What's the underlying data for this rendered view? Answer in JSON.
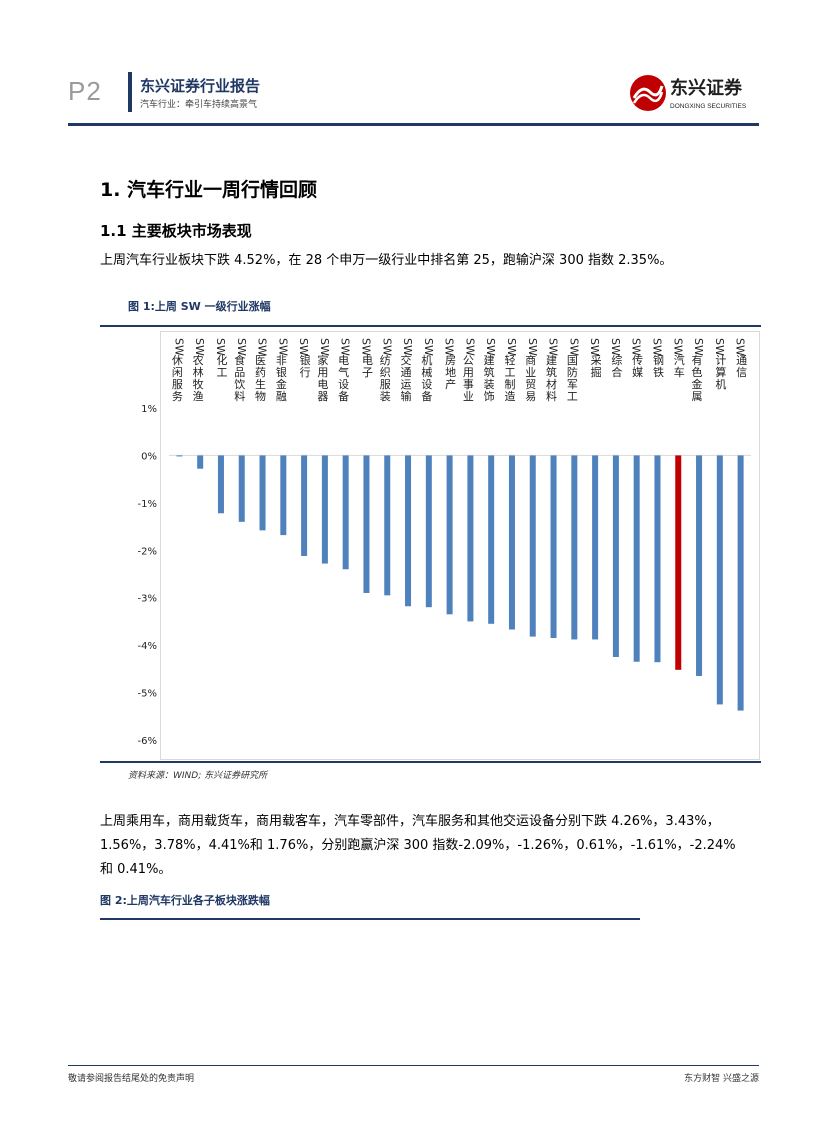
{
  "header": {
    "page_no": "P2",
    "report_title": "东兴证券行业报告",
    "report_subtitle": "汽车行业：牵引车持续高景气",
    "logo_text": "东兴证券",
    "logo_sub": "DONGXING SECURITIES",
    "colors": {
      "brand_blue": "#1f3864",
      "logo_red": "#c00000"
    }
  },
  "section": {
    "h1": "1. 汽车行业一周行情回顾",
    "h2": "1.1 主要板块市场表现",
    "para1": "上周汽车行业板块下跌 4.52%，在 28 个申万一级行业中排名第 25，跑输沪深 300 指数 2.35%。",
    "para2_line1": "上周乘用车，商用载货车，商用载客车，汽车零部件，汽车服务和其他交运设备分别下跌 4.26%，3.43%，",
    "para2_line2": "1.56%，3.78%，4.41%和 1.76%，分别跑赢沪深 300 指数-2.09%，-1.26%，0.61%，-1.61%，-2.24%",
    "para2_line3": "和 0.41%。"
  },
  "figure1": {
    "title": "图 1:上周 SW 一级行业涨幅",
    "source": "资料来源：WIND; 东兴证券研究所"
  },
  "figure2": {
    "title": "图 2:上周汽车行业各子板块涨跌幅"
  },
  "footer": {
    "left": "敬请参阅报告结尾处的免责声明",
    "right": "东方财智 兴盛之源"
  },
  "chart_data": {
    "type": "bar",
    "title": "图 1:上周 SW 一级行业涨幅",
    "categories": [
      "SW休闲服务",
      "SW农林牧渔",
      "SW化工",
      "SW食品饮料",
      "SW医药生物",
      "SW非银金融",
      "SW银行",
      "SW家用电器",
      "SW电气设备",
      "SW电子",
      "SW纺织服装",
      "SW交通运输",
      "SW机械设备",
      "SW房地产",
      "SW公用事业",
      "SW建筑装饰",
      "SW轻工制造",
      "SW商业贸易",
      "SW建筑材料",
      "SW国防军工",
      "SW采掘",
      "SW综合",
      "SW传媒",
      "SW钢铁",
      "SW汽车",
      "SW有色金属",
      "SW计算机",
      "SW通信"
    ],
    "values": [
      -0.02,
      -0.28,
      -1.22,
      -1.4,
      -1.58,
      -1.68,
      -2.12,
      -2.28,
      -2.4,
      -2.9,
      -2.95,
      -3.18,
      -3.2,
      -3.35,
      -3.5,
      -3.55,
      -3.67,
      -3.82,
      -3.85,
      -3.88,
      -3.88,
      -4.25,
      -4.35,
      -4.36,
      -4.52,
      -4.65,
      -5.25,
      -5.38
    ],
    "highlight": "SW汽车",
    "ylim": [
      -6,
      1
    ],
    "yticks": [
      1,
      0,
      -1,
      -2,
      -3,
      -4,
      -5,
      -6
    ],
    "ytick_labels": [
      "1%",
      "0%",
      "-1%",
      "-2%",
      "-3%",
      "-4%",
      "-5%",
      "-6%"
    ],
    "xlabel": "",
    "ylabel": "",
    "colors": {
      "bar": "#4f81bd",
      "highlight": "#c00000"
    },
    "grid": false,
    "legend": "none"
  }
}
